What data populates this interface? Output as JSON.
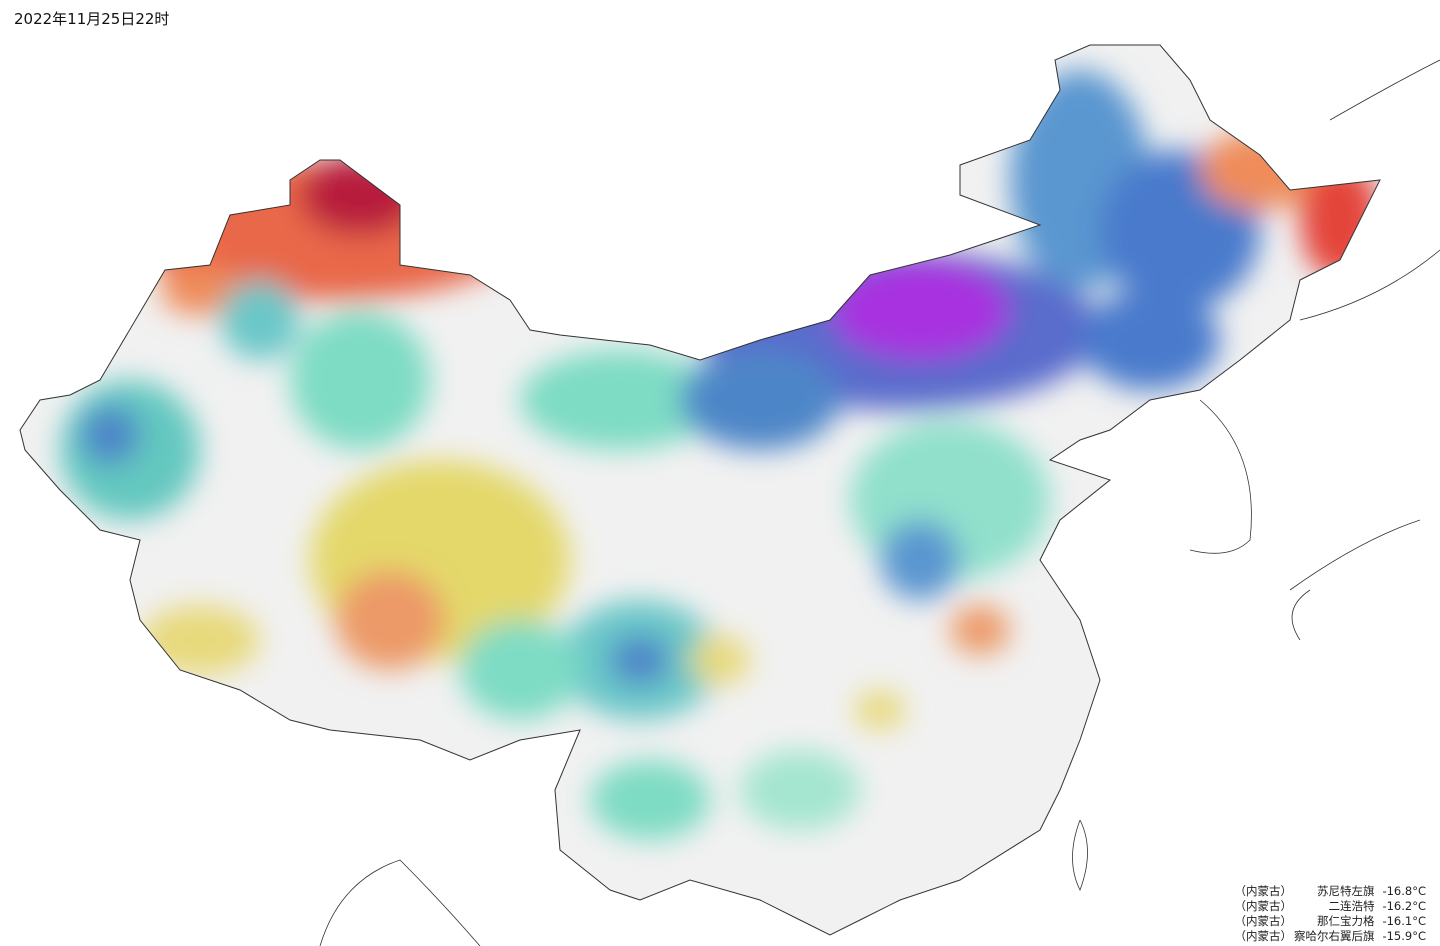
{
  "header": {
    "title": "2022年11月25日22时"
  },
  "stations": [
    {
      "region": "（内蒙古）",
      "name": "苏尼特左旗",
      "temp": "-16.8°C"
    },
    {
      "region": "（内蒙古）",
      "name": "二连浩特",
      "temp": "-16.2°C"
    },
    {
      "region": "（内蒙古）",
      "name": "那仁宝力格",
      "temp": "-16.1°C"
    },
    {
      "region": "（内蒙古）",
      "name": "察哈尔右翼后旗",
      "temp": "-15.9°C"
    }
  ]
}
